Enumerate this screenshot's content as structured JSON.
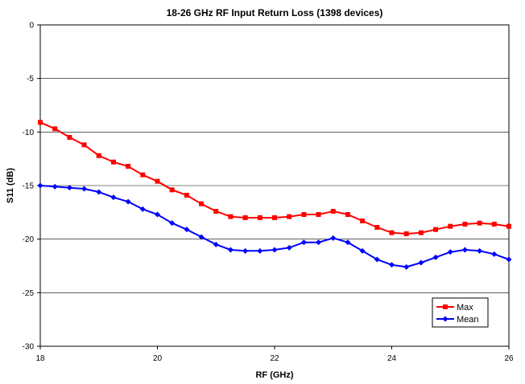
{
  "chart_data": {
    "type": "line",
    "title": "18-26 GHz RF Input Return Loss (1398 devices)",
    "xlabel": "RF (GHz)",
    "ylabel": "S11 (dB)",
    "xlim": [
      18,
      26
    ],
    "ylim": [
      -30,
      0
    ],
    "x_ticks": [
      18,
      20,
      22,
      24,
      26
    ],
    "y_ticks": [
      0,
      -5,
      -10,
      -15,
      -20,
      -25,
      -30
    ],
    "grid": "horizontal",
    "legend_position": "bottom-right",
    "x": [
      18.0,
      18.25,
      18.5,
      18.75,
      19.0,
      19.25,
      19.5,
      19.75,
      20.0,
      20.25,
      20.5,
      20.75,
      21.0,
      21.25,
      21.5,
      21.75,
      22.0,
      22.25,
      22.5,
      22.75,
      23.0,
      23.25,
      23.5,
      23.75,
      24.0,
      24.25,
      24.5,
      24.75,
      25.0,
      25.25,
      25.5,
      25.75,
      26.0
    ],
    "series": [
      {
        "name": "Max",
        "color": "#ff0000",
        "marker": "square",
        "values": [
          -9.1,
          -9.7,
          -10.5,
          -11.2,
          -12.2,
          -12.8,
          -13.2,
          -14.0,
          -14.6,
          -15.4,
          -15.9,
          -16.7,
          -17.4,
          -17.9,
          -18.0,
          -18.0,
          -18.0,
          -17.9,
          -17.7,
          -17.7,
          -17.4,
          -17.7,
          -18.3,
          -18.9,
          -19.4,
          -19.5,
          -19.4,
          -19.1,
          -18.8,
          -18.6,
          -18.5,
          -18.6,
          -18.8
        ]
      },
      {
        "name": "Mean",
        "color": "#0000ff",
        "marker": "diamond",
        "values": [
          -15.0,
          -15.1,
          -15.2,
          -15.3,
          -15.6,
          -16.1,
          -16.5,
          -17.2,
          -17.7,
          -18.5,
          -19.1,
          -19.8,
          -20.5,
          -21.0,
          -21.1,
          -21.1,
          -21.0,
          -20.8,
          -20.3,
          -20.3,
          -19.9,
          -20.3,
          -21.1,
          -21.9,
          -22.4,
          -22.6,
          -22.2,
          -21.7,
          -21.2,
          -21.0,
          -21.1,
          -21.4,
          -21.9
        ]
      }
    ]
  }
}
